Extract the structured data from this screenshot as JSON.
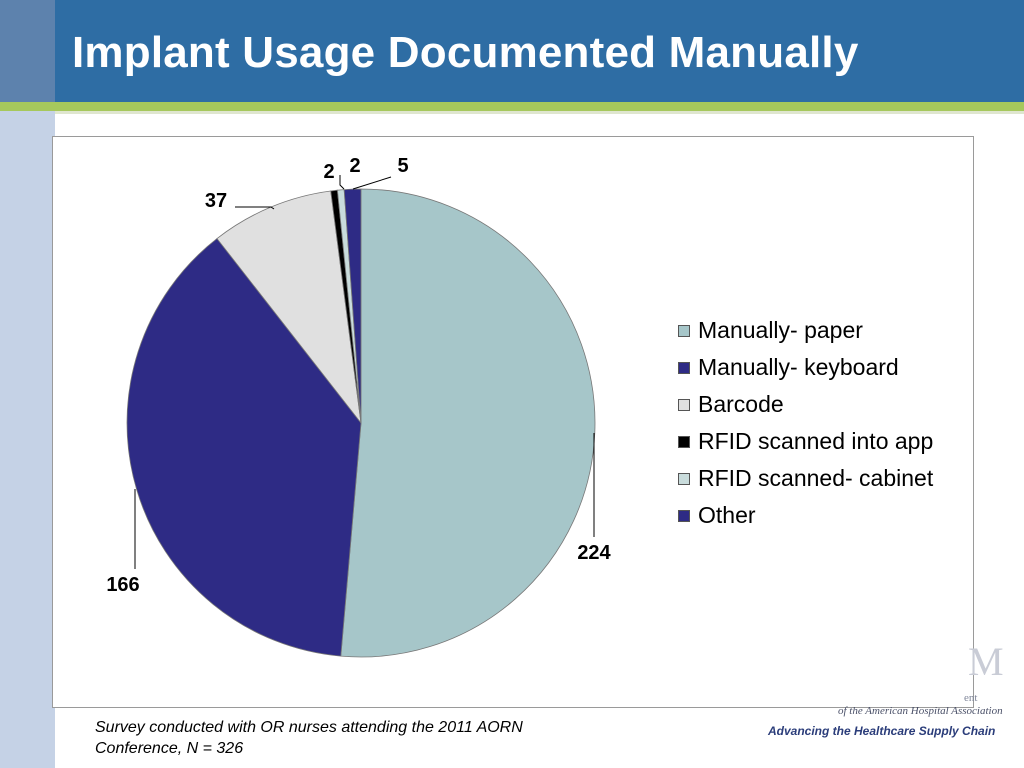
{
  "slide": {
    "title": "Implant Usage Documented Manually",
    "footnote_line1": "Survey conducted with OR nurses attending the 2011 AORN",
    "footnote_line2": "Conference, N = 326"
  },
  "logo": {
    "mark": "M",
    "partial_line": "ent",
    "association": "of the American Hospital Association",
    "tagline": "Advancing the Healthcare Supply Chain"
  },
  "chart_data": {
    "type": "pie",
    "title": "",
    "start_angle_deg": 0,
    "direction": "clockwise",
    "legend_position": "right",
    "categories": [
      "Manually- paper",
      "Manually- keyboard",
      "Barcode",
      "RFID scanned into app",
      "RFID scanned- cabinet",
      "Other"
    ],
    "values": [
      224,
      166,
      37,
      2,
      2,
      5
    ],
    "data_labels": [
      "224",
      "166",
      "37",
      "2",
      "2",
      "5"
    ],
    "colors": [
      "#a6c6c9",
      "#2e2b85",
      "#e0e0e0",
      "#000000",
      "#c9dcdc",
      "#2e2b85"
    ]
  }
}
